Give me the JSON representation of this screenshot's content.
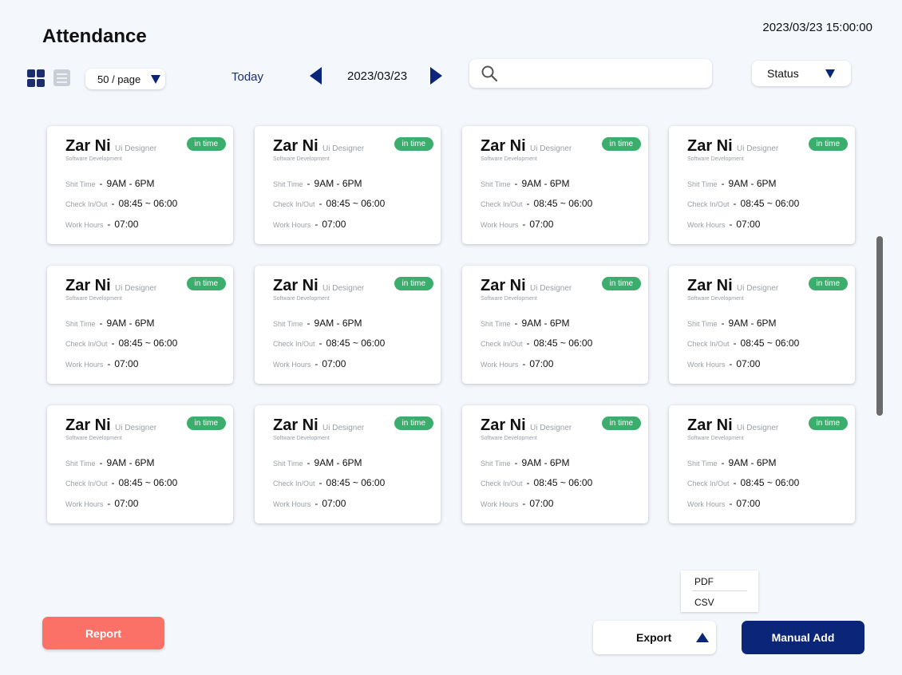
{
  "header": {
    "title": "Attendance",
    "datetime": "2023/03/23 15:00:00"
  },
  "toolbar": {
    "view_modes": [
      "grid-view-icon",
      "list-view-icon"
    ],
    "per_page": "50 / page",
    "today_label": "Today",
    "current_date": "2023/03/23",
    "search_placeholder": "",
    "status_filter": "Status"
  },
  "cards": [
    {
      "name": "Zar Ni",
      "role": "Ui Designer",
      "department": "Software Development",
      "status": "in time",
      "shift_label": "Shit Time",
      "shift": "9AM - 6PM",
      "check_label": "Check In/Out",
      "check": "08:45 ~ 06:00",
      "hours_label": "Work Hours",
      "hours": "07:00"
    },
    {
      "name": "Zar Ni",
      "role": "Ui Designer",
      "department": "Software Development",
      "status": "in time",
      "shift_label": "Shit Time",
      "shift": "9AM - 6PM",
      "check_label": "Check In/Out",
      "check": "08:45 ~ 06:00",
      "hours_label": "Work Hours",
      "hours": "07:00"
    },
    {
      "name": "Zar Ni",
      "role": "Ui Designer",
      "department": "Software Development",
      "status": "in time",
      "shift_label": "Shit Time",
      "shift": "9AM - 6PM",
      "check_label": "Check In/Out",
      "check": "08:45 ~ 06:00",
      "hours_label": "Work Hours",
      "hours": "07:00"
    },
    {
      "name": "Zar Ni",
      "role": "Ui Designer",
      "department": "Software Development",
      "status": "in time",
      "shift_label": "Shit Time",
      "shift": "9AM - 6PM",
      "check_label": "Check In/Out",
      "check": "08:45 ~ 06:00",
      "hours_label": "Work Hours",
      "hours": "07:00"
    },
    {
      "name": "Zar Ni",
      "role": "Ui Designer",
      "department": "Software Development",
      "status": "in time",
      "shift_label": "Shit Time",
      "shift": "9AM - 6PM",
      "check_label": "Check In/Out",
      "check": "08:45 ~ 06:00",
      "hours_label": "Work Hours",
      "hours": "07:00"
    },
    {
      "name": "Zar Ni",
      "role": "Ui Designer",
      "department": "Software Development",
      "status": "in time",
      "shift_label": "Shit Time",
      "shift": "9AM - 6PM",
      "check_label": "Check In/Out",
      "check": "08:45 ~ 06:00",
      "hours_label": "Work Hours",
      "hours": "07:00"
    },
    {
      "name": "Zar Ni",
      "role": "Ui Designer",
      "department": "Software Development",
      "status": "in time",
      "shift_label": "Shit Time",
      "shift": "9AM - 6PM",
      "check_label": "Check In/Out",
      "check": "08:45 ~ 06:00",
      "hours_label": "Work Hours",
      "hours": "07:00"
    },
    {
      "name": "Zar Ni",
      "role": "Ui Designer",
      "department": "Software Development",
      "status": "in time",
      "shift_label": "Shit Time",
      "shift": "9AM - 6PM",
      "check_label": "Check In/Out",
      "check": "08:45 ~ 06:00",
      "hours_label": "Work Hours",
      "hours": "07:00"
    },
    {
      "name": "Zar Ni",
      "role": "Ui Designer",
      "department": "Software Development",
      "status": "in time",
      "shift_label": "Shit Time",
      "shift": "9AM - 6PM",
      "check_label": "Check In/Out",
      "check": "08:45 ~ 06:00",
      "hours_label": "Work Hours",
      "hours": "07:00"
    },
    {
      "name": "Zar Ni",
      "role": "Ui Designer",
      "department": "Software Development",
      "status": "in time",
      "shift_label": "Shit Time",
      "shift": "9AM - 6PM",
      "check_label": "Check In/Out",
      "check": "08:45 ~ 06:00",
      "hours_label": "Work Hours",
      "hours": "07:00"
    },
    {
      "name": "Zar Ni",
      "role": "Ui Designer",
      "department": "Software Development",
      "status": "in time",
      "shift_label": "Shit Time",
      "shift": "9AM - 6PM",
      "check_label": "Check In/Out",
      "check": "08:45 ~ 06:00",
      "hours_label": "Work Hours",
      "hours": "07:00"
    },
    {
      "name": "Zar Ni",
      "role": "Ui Designer",
      "department": "Software Development",
      "status": "in time",
      "shift_label": "Shit Time",
      "shift": "9AM - 6PM",
      "check_label": "Check In/Out",
      "check": "08:45 ~ 06:00",
      "hours_label": "Work Hours",
      "hours": "07:00"
    }
  ],
  "footer": {
    "report_label": "Report",
    "export_label": "Export",
    "export_options": [
      "PDF",
      "CSV"
    ],
    "manual_add_label": "Manual Add"
  },
  "colors": {
    "accent": "#0b2579",
    "status_in_time": "#3bae6e",
    "report": "#fb7168",
    "background": "#f4f7fc"
  }
}
